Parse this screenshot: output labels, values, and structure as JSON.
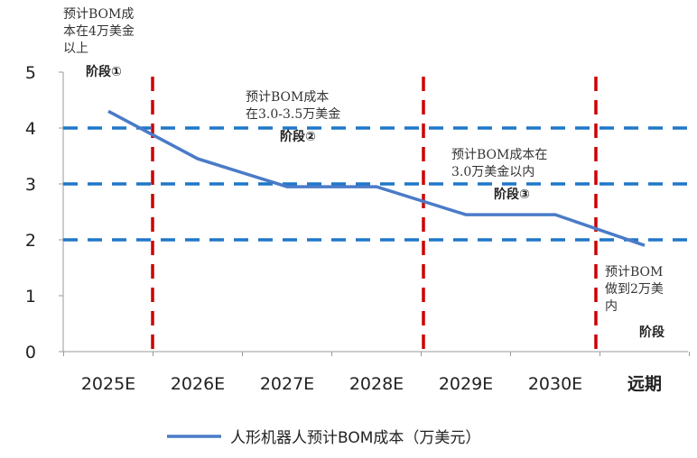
{
  "chart_data": {
    "type": "line",
    "categories": [
      "2025E",
      "2026E",
      "2027E",
      "2028E",
      "2029E",
      "2030E",
      "远期"
    ],
    "series": [
      {
        "name": "人形机器人预计BOM成本（万美元）",
        "values": [
          4.3,
          3.45,
          2.95,
          2.95,
          2.45,
          2.45,
          1.9
        ],
        "color": "#4a7bc8"
      }
    ],
    "yticks": [
      0,
      1,
      2,
      3,
      4,
      5
    ],
    "ylim": [
      0,
      5
    ],
    "reference_lines_y": [
      4,
      3,
      2
    ],
    "reference_line_color": "#1f77c8",
    "stage_divider_color": "#cc0000",
    "legend_position": "bottom",
    "annotations": [
      {
        "lines": [
          "预计BOM成",
          "本在4万美金",
          "以上"
        ],
        "stage": "阶段①"
      },
      {
        "lines": [
          "预计BOM成本",
          "在3.0-3.5万美金"
        ],
        "stage": "阶段②"
      },
      {
        "lines": [
          "预计BOM成本在",
          "3.0万美金以内"
        ],
        "stage": "阶段③"
      },
      {
        "lines": [
          "预计BOM",
          "做到2万美",
          "内"
        ],
        "stage": "阶段"
      }
    ]
  }
}
